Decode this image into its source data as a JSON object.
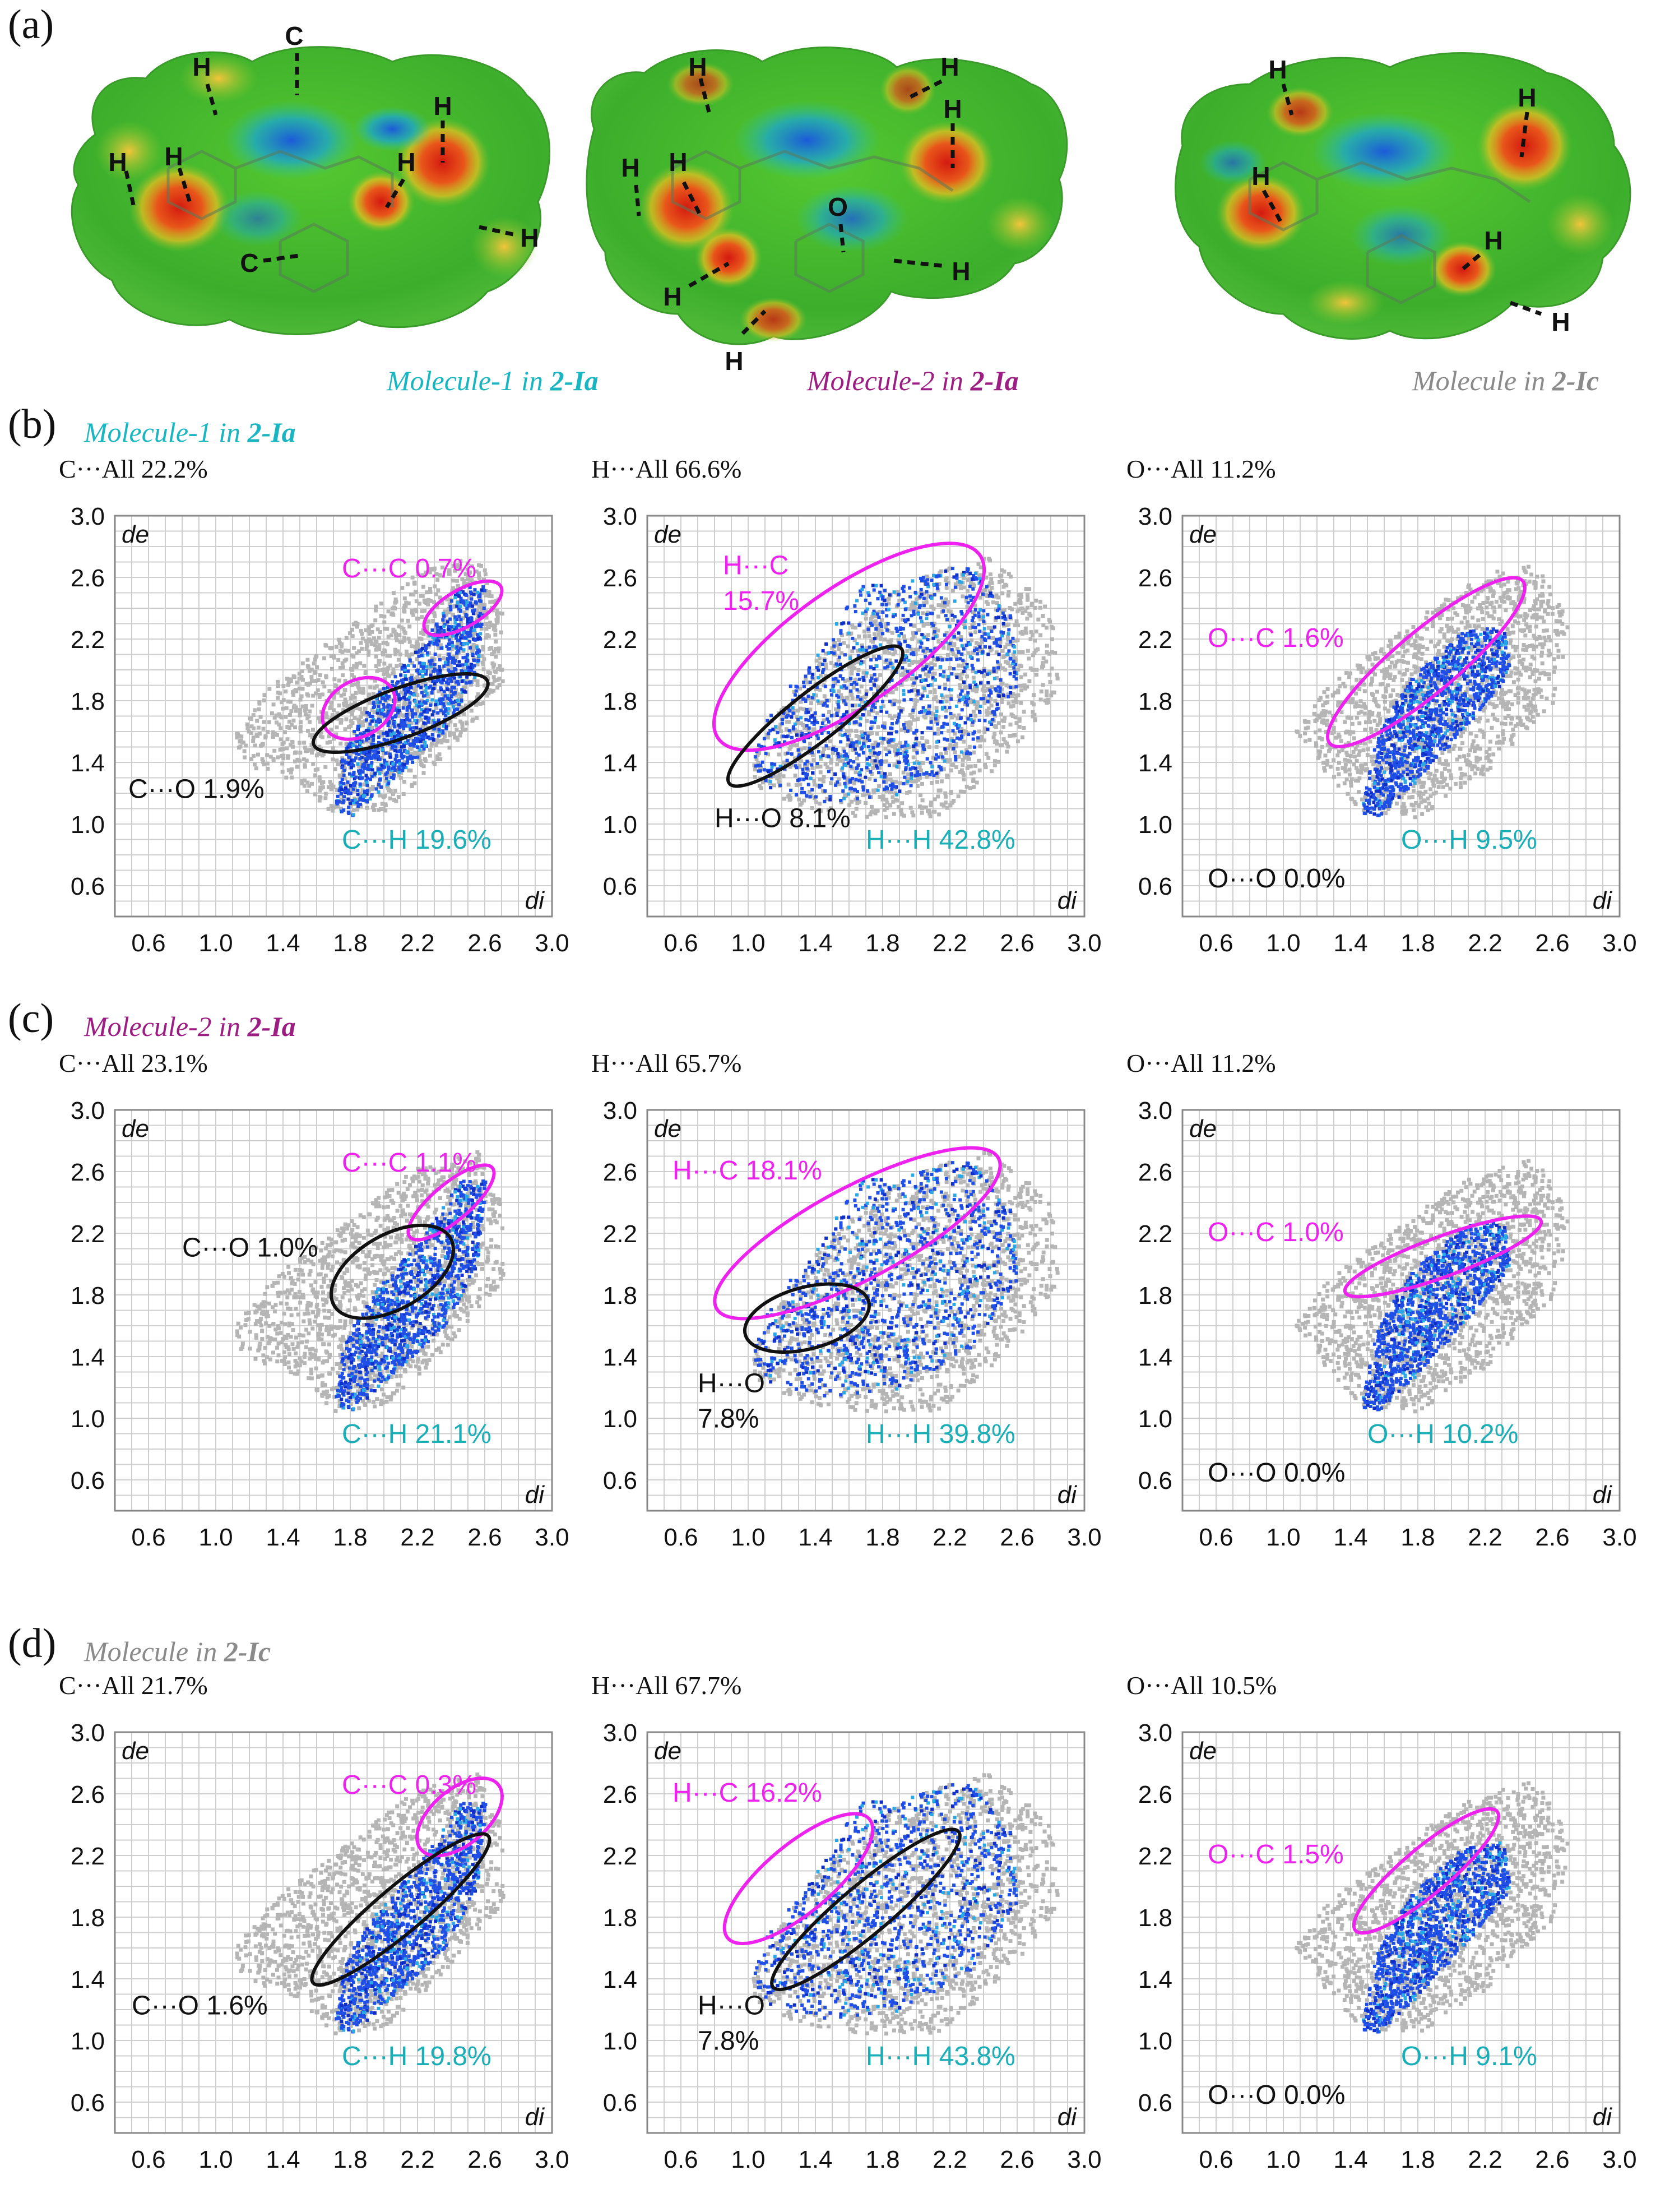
{
  "figure": {
    "panel_a": {
      "label": "(a)",
      "molecules": [
        {
          "pre": "Molecule-1 in ",
          "bold": "2-Ia",
          "color": "#19b5c0"
        },
        {
          "pre": "Molecule-2 in ",
          "bold": "2-Ia",
          "color": "#9c1e83"
        },
        {
          "pre": "Molecule in ",
          "bold": "2-Ic",
          "color": "#8a8a8a"
        }
      ],
      "atom_labels": {
        "m1": [
          "C",
          "H",
          "H",
          "H",
          "H",
          "H",
          "H",
          "C"
        ],
        "m2": [
          "H",
          "H",
          "H",
          "H",
          "H",
          "O",
          "H",
          "H",
          "H"
        ],
        "m3": [
          "H",
          "H",
          "H",
          "H",
          "H"
        ]
      }
    },
    "colors": {
      "magenta": "#ee22ee",
      "cyan": "#1aaeb6",
      "black": "#111111",
      "blue": "#1f4fe6",
      "grey": "#b5b5b5"
    },
    "axes": {
      "ticks": [
        "0.6",
        "1.0",
        "1.4",
        "1.8",
        "2.2",
        "2.6",
        "3.0"
      ],
      "xlabel": "di",
      "ylabel": "de",
      "range": [
        0.4,
        3.0
      ]
    },
    "rows": [
      {
        "label": "(b)",
        "title": {
          "pre": "Molecule-1 in ",
          "bold": "2-Ia",
          "color": "#19b5c0"
        },
        "plots": [
          {
            "header": "C···All 22.2%",
            "labels": [
              {
                "text": "C···C 0.7%",
                "color": "magenta"
              },
              {
                "text": "C···O 1.9%",
                "color": "black"
              },
              {
                "text": "C···H 19.6%",
                "color": "cyan"
              }
            ]
          },
          {
            "header": "H···All 66.6%",
            "labels": [
              {
                "text": "H···C",
                "color": "magenta"
              },
              {
                "text": "15.7%",
                "color": "magenta"
              },
              {
                "text": "H···O 8.1%",
                "color": "black"
              },
              {
                "text": "H···H 42.8%",
                "color": "cyan"
              }
            ]
          },
          {
            "header": "O···All 11.2%",
            "labels": [
              {
                "text": "O···C 1.6%",
                "color": "magenta"
              },
              {
                "text": "O···H 9.5%",
                "color": "cyan"
              },
              {
                "text": "O···O 0.0%",
                "color": "black"
              }
            ]
          }
        ]
      },
      {
        "label": "(c)",
        "title": {
          "pre": "Molecule-2 in ",
          "bold": "2-Ia",
          "color": "#9c1e83"
        },
        "plots": [
          {
            "header": "C···All 23.1%",
            "labels": [
              {
                "text": "C···C 1.1%",
                "color": "magenta"
              },
              {
                "text": "C···O 1.0%",
                "color": "black"
              },
              {
                "text": "C···H 21.1%",
                "color": "cyan"
              }
            ]
          },
          {
            "header": "H···All 65.7%",
            "labels": [
              {
                "text": "H···C 18.1%",
                "color": "magenta"
              },
              {
                "text": "H···O",
                "color": "black"
              },
              {
                "text": "7.8%",
                "color": "black"
              },
              {
                "text": "H···H 39.8%",
                "color": "cyan"
              }
            ]
          },
          {
            "header": "O···All 11.2%",
            "labels": [
              {
                "text": "O···C 1.0%",
                "color": "magenta"
              },
              {
                "text": "O···H 10.2%",
                "color": "cyan"
              },
              {
                "text": "O···O 0.0%",
                "color": "black"
              }
            ]
          }
        ]
      },
      {
        "label": "(d)",
        "title": {
          "pre": "Molecule in ",
          "bold": "2-Ic",
          "color": "#8a8a8a"
        },
        "plots": [
          {
            "header": "C···All 21.7%",
            "labels": [
              {
                "text": "C···C 0.3%",
                "color": "magenta"
              },
              {
                "text": "C···O 1.6%",
                "color": "black"
              },
              {
                "text": "C···H 19.8%",
                "color": "cyan"
              }
            ]
          },
          {
            "header": "H···All 67.7%",
            "labels": [
              {
                "text": "H···C 16.2%",
                "color": "magenta"
              },
              {
                "text": "H···O",
                "color": "black"
              },
              {
                "text": "7.8%",
                "color": "black"
              },
              {
                "text": "H···H 43.8%",
                "color": "cyan"
              }
            ]
          },
          {
            "header": "O···All 10.5%",
            "labels": [
              {
                "text": "O···C 1.5%",
                "color": "magenta"
              },
              {
                "text": "O···H 9.1%",
                "color": "cyan"
              },
              {
                "text": "O···O 0.0%",
                "color": "black"
              }
            ]
          }
        ]
      }
    ]
  }
}
